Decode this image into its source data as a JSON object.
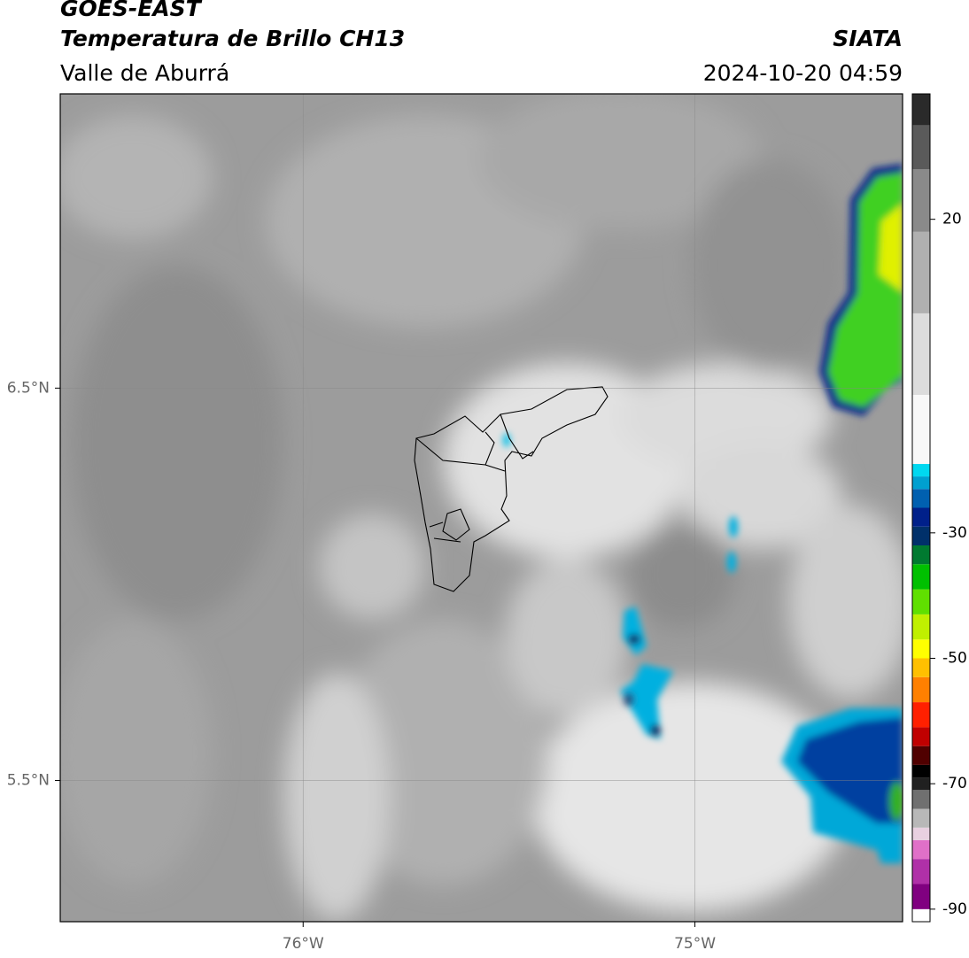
{
  "header": {
    "satellite": "GOES-EAST",
    "product": "Temperatura de Brillo CH13",
    "region": "Valle de Aburrá",
    "source": "SIATA",
    "datetime": "2024-10-20 04:59"
  },
  "map": {
    "xlim": [
      -76.62,
      -74.47
    ],
    "ylim": [
      5.14,
      7.25
    ],
    "xticks": [
      {
        "value": -76,
        "label": "76°W"
      },
      {
        "value": -75,
        "label": "75°W"
      }
    ],
    "yticks": [
      {
        "value": 6.5,
        "label": "6.5°N"
      },
      {
        "value": 5.5,
        "label": "5.5°N"
      }
    ],
    "grid": true
  },
  "colorbar": {
    "lim": [
      -92,
      40
    ],
    "ticks": [
      20,
      -30,
      -50,
      -70,
      -90
    ],
    "colormap": [
      {
        "value": -92,
        "color": "#ffffff"
      },
      {
        "value": -90,
        "color": "#800080"
      },
      {
        "value": -86,
        "color": "#b030a8"
      },
      {
        "value": -82,
        "color": "#e070c8"
      },
      {
        "value": -79,
        "color": "#e8d0e0"
      },
      {
        "value": -77,
        "color": "#b8b8b8"
      },
      {
        "value": -74,
        "color": "#707070"
      },
      {
        "value": -71,
        "color": "#202020"
      },
      {
        "value": -69,
        "color": "#000000"
      },
      {
        "value": -67,
        "color": "#500000"
      },
      {
        "value": -64,
        "color": "#c00000"
      },
      {
        "value": -61,
        "color": "#ff2000"
      },
      {
        "value": -57,
        "color": "#ff8000"
      },
      {
        "value": -53,
        "color": "#ffc000"
      },
      {
        "value": -50,
        "color": "#ffff00"
      },
      {
        "value": -47,
        "color": "#c0f000"
      },
      {
        "value": -43,
        "color": "#60e000"
      },
      {
        "value": -39,
        "color": "#00c000"
      },
      {
        "value": -35,
        "color": "#007a30"
      },
      {
        "value": -32,
        "color": "#00306a"
      },
      {
        "value": -29,
        "color": "#00208a"
      },
      {
        "value": -26,
        "color": "#0060b0"
      },
      {
        "value": -23,
        "color": "#00a0d0"
      },
      {
        "value": -21,
        "color": "#00d8f0"
      },
      {
        "value": -19,
        "color": "#f8f8f8"
      },
      {
        "value": -8,
        "color": "#dcdcdc"
      },
      {
        "value": 5,
        "color": "#b0b0b0"
      },
      {
        "value": 18,
        "color": "#8a8a8a"
      },
      {
        "value": 28,
        "color": "#5a5a5a"
      },
      {
        "value": 35,
        "color": "#2a2a2a"
      }
    ]
  }
}
